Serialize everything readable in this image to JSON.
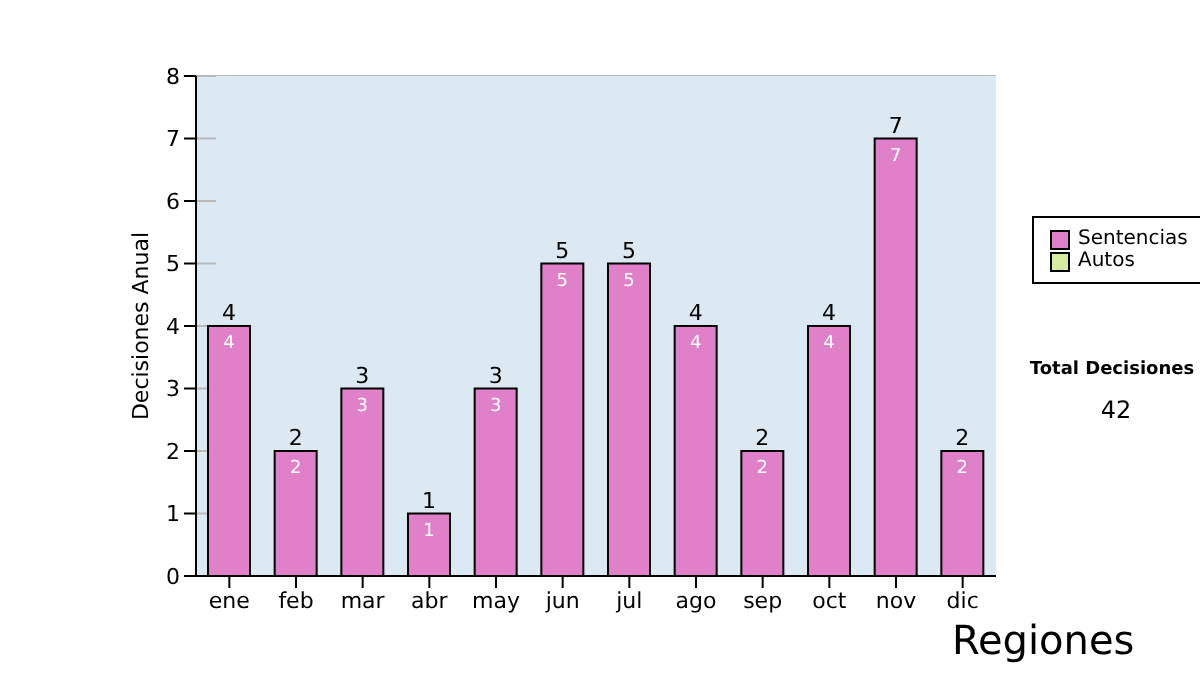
{
  "chart_data": {
    "type": "bar",
    "stacked": true,
    "ylabel": "Decisiones Anual",
    "categories": [
      "ene",
      "feb",
      "mar",
      "abr",
      "may",
      "jun",
      "jul",
      "ago",
      "sep",
      "oct",
      "nov",
      "dic"
    ],
    "series": [
      {
        "name": "Sentencias",
        "color": "#e080c8",
        "values": [
          4,
          2,
          3,
          1,
          3,
          5,
          5,
          4,
          2,
          4,
          7,
          2
        ],
        "value_labels": [
          "4",
          "2",
          "3",
          "1",
          "3",
          "5",
          "5",
          "4",
          "2",
          "4",
          "7",
          "2"
        ]
      },
      {
        "name": "Autos",
        "color": "#d8eca0",
        "values": [
          0,
          0,
          0,
          0,
          0,
          0,
          0,
          0,
          0,
          0,
          0,
          0
        ]
      }
    ],
    "totals": [
      "4",
      "2",
      "3",
      "1",
      "3",
      "5",
      "5",
      "4",
      "2",
      "4",
      "7",
      "2"
    ],
    "ylim": [
      0,
      8
    ],
    "yticks": [
      0,
      1,
      2,
      3,
      4,
      5,
      6,
      7,
      8
    ],
    "grid": "y",
    "legend": "right",
    "annotations": [
      "Total Decisiones",
      "42",
      "Regiones"
    ]
  }
}
